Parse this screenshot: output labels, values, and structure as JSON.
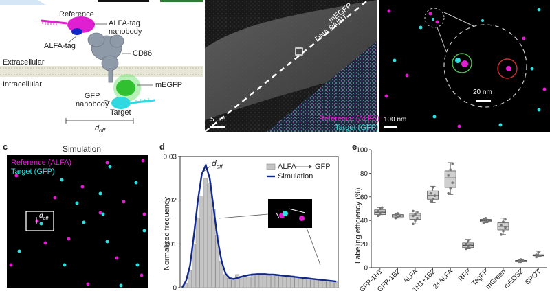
{
  "panel_a": {
    "labels": {
      "reference": "Reference",
      "alfa_nanobody": "ALFA-tag\nnanobody",
      "alfa_tag": "ALFA-tag",
      "cd86": "CD86",
      "extracellular": "Extracellular",
      "intracellular": "Intracellular",
      "megfp": "mEGFP",
      "gfp_nanobody": "GFP\nnanobody",
      "target": "Target",
      "doff": "d",
      "doff_sub": "off"
    }
  },
  "panel_b_left": {
    "megfp_label": "mEGFP",
    "dnapaint_label": "DNA PAINT",
    "scale_label": "5 µm",
    "legend_ref": "Reference (ALFA)",
    "legend_target": "Target (GFP)"
  },
  "panel_b_right": {
    "scale_label": "100 nm",
    "inset_scale": "20 nm"
  },
  "panel_c": {
    "letter": "c",
    "title": "Simulation",
    "legend_ref": "Reference (ALFA)",
    "legend_target": "Target (GFP)",
    "doff": "d",
    "doff_sub": "off"
  },
  "panel_d": {
    "letter": "d",
    "ylabel": "Normalized frequency",
    "doff": "d",
    "doff_sub": "off",
    "legend_hist_a": "ALFA",
    "legend_hist_b": "GFP",
    "legend_sim": "Simulation"
  },
  "panel_e": {
    "letter": "e",
    "ylabel": "Labeling efficiency (%)"
  },
  "colors": {
    "magenta": "#e020d0",
    "cyan": "#30e0e0",
    "navy": "#12298a",
    "green": "#30c030",
    "gray_bar": "#c4c4c4"
  },
  "chart_data": [
    {
      "type": "bar",
      "title": "",
      "xlabel": "",
      "ylabel": "Normalized frequency",
      "ylim": [
        0,
        0.03
      ],
      "yticks": [
        "0",
        "0.01",
        "0.02",
        "0.03"
      ],
      "series": [
        {
          "name": "ALFA → GFP",
          "values": [
            0.0,
            0.001,
            0.004,
            0.01,
            0.016,
            0.021,
            0.025,
            0.024,
            0.018,
            0.012,
            0.006,
            0.003,
            0.0022,
            0.0018,
            0.003,
            0.0026,
            0.0028,
            0.0025,
            0.0032,
            0.003,
            0.0029,
            0.0031,
            0.0028,
            0.003,
            0.0027,
            0.0029,
            0.0026,
            0.0028,
            0.0027,
            0.0025,
            0.0024,
            0.0023,
            0.0022,
            0.0021,
            0.002,
            0.0019,
            0.0018,
            0.0016,
            0.0015,
            0.0014
          ]
        },
        {
          "name": "Simulation",
          "values": [
            0.0,
            0.0015,
            0.005,
            0.012,
            0.02,
            0.026,
            0.028,
            0.025,
            0.018,
            0.011,
            0.006,
            0.0032,
            0.0022,
            0.002,
            0.0022,
            0.0025,
            0.0027,
            0.0029,
            0.003,
            0.0031,
            0.0031,
            0.0031,
            0.003,
            0.003,
            0.0029,
            0.0028,
            0.0027,
            0.0026,
            0.0025,
            0.0024,
            0.0023,
            0.0022,
            0.0021,
            0.002,
            0.0019,
            0.0018,
            0.0017,
            0.0016,
            0.0015,
            0.0014
          ]
        }
      ]
    },
    {
      "type": "box",
      "title": "",
      "xlabel": "",
      "ylabel": "Labeling efficiency (%)",
      "ylim": [
        0,
        100
      ],
      "yticks": [
        "0",
        "20",
        "40",
        "60",
        "80",
        "100"
      ],
      "categories": [
        "GFP-1H1",
        "GFP-1B2",
        "ALFA",
        "1H1+1B2",
        "2+ALFA",
        "RFP",
        "TagFP",
        "mGreen",
        "mEOS2",
        "SPOT"
      ],
      "boxes": [
        {
          "min": 44,
          "q1": 45,
          "median": 47,
          "q3": 49,
          "max": 51,
          "points": [
            44,
            46,
            47,
            48,
            50,
            51
          ]
        },
        {
          "min": 42,
          "q1": 43,
          "median": 44,
          "q3": 45,
          "max": 46,
          "points": [
            42,
            43,
            44,
            45,
            46
          ]
        },
        {
          "min": 37,
          "q1": 41,
          "median": 44,
          "q3": 46,
          "max": 48,
          "points": [
            37,
            40,
            42,
            44,
            45,
            47,
            48
          ]
        },
        {
          "min": 55,
          "q1": 58,
          "median": 61,
          "q3": 65,
          "max": 69,
          "points": [
            56,
            58,
            61,
            63,
            68
          ]
        },
        {
          "min": 62,
          "q1": 68,
          "median": 76,
          "q3": 82,
          "max": 89,
          "points": [
            63,
            67,
            72,
            78,
            83,
            88
          ]
        },
        {
          "min": 16,
          "q1": 17,
          "median": 19,
          "q3": 21,
          "max": 24,
          "points": [
            16,
            18,
            19,
            20,
            23
          ]
        },
        {
          "min": 38,
          "q1": 39,
          "median": 40,
          "q3": 41,
          "max": 42,
          "points": [
            38,
            39,
            40,
            41,
            42
          ]
        },
        {
          "min": 28,
          "q1": 32,
          "median": 35,
          "q3": 38,
          "max": 42,
          "points": [
            28,
            31,
            34,
            36,
            39,
            41
          ]
        },
        {
          "min": 5,
          "q1": 5,
          "median": 6,
          "q3": 6,
          "max": 7,
          "points": [
            5,
            5,
            6,
            6,
            7
          ]
        },
        {
          "min": 9,
          "q1": 10,
          "median": 10.5,
          "q3": 11,
          "max": 14,
          "points": [
            9,
            10,
            10,
            11,
            13
          ]
        }
      ]
    }
  ]
}
